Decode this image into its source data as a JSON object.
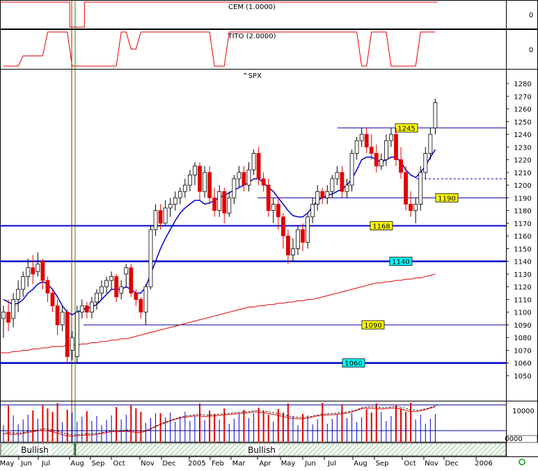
{
  "chart_data": {
    "type": "candlestick",
    "panels": {
      "cem": {
        "title": "CEM (1.0000)",
        "zero_label": "0"
      },
      "tito": {
        "title": "TITO (2.0000)",
        "zero_label": "0"
      },
      "price": {
        "title": "^SPX",
        "ylim": [
          1040,
          1285
        ],
        "y_ticks": [
          1050,
          1060,
          1070,
          1080,
          1090,
          1100,
          1110,
          1120,
          1130,
          1140,
          1150,
          1160,
          1170,
          1180,
          1190,
          1200,
          1210,
          1220,
          1230,
          1240,
          1250,
          1260,
          1270,
          1280
        ]
      },
      "volume": {
        "tick_label": "10000",
        "scale_box": "0000"
      }
    },
    "x_labels": [
      "May",
      "Jun",
      "Jul",
      "Aug",
      "Sep",
      "Oct",
      "Nov",
      "Dec",
      "2005",
      "Feb",
      "Mar",
      "Apr",
      "May",
      "Jun",
      "Jul",
      "Aug",
      "Sep",
      "Oct",
      "Nov",
      "Dec",
      "2006"
    ],
    "support_lines": [
      {
        "value": 1245,
        "label": "1245",
        "color": "#ffff00"
      },
      {
        "value": 1190,
        "label": "1190",
        "color": "#ffff00"
      },
      {
        "value": 1168,
        "label": "1168",
        "color": "#ffff00"
      },
      {
        "value": 1140,
        "label": "1140",
        "color": "#00ffff"
      },
      {
        "value": 1090,
        "label": "1090",
        "color": "#ffff00"
      },
      {
        "value": 1060,
        "label": "1060",
        "color": "#00ffff"
      }
    ],
    "candles": [
      [
        1095,
        1100,
        1080,
        1105,
        0
      ],
      [
        1100,
        1092,
        1085,
        1110,
        1
      ],
      [
        1095,
        1110,
        1088,
        1115,
        0
      ],
      [
        1110,
        1118,
        1100,
        1125,
        0
      ],
      [
        1118,
        1128,
        1112,
        1132,
        0
      ],
      [
        1128,
        1135,
        1120,
        1142,
        0
      ],
      [
        1135,
        1130,
        1122,
        1145,
        1
      ],
      [
        1132,
        1138,
        1128,
        1147,
        0
      ],
      [
        1140,
        1125,
        1118,
        1142,
        1
      ],
      [
        1125,
        1115,
        1108,
        1128,
        1
      ],
      [
        1115,
        1105,
        1100,
        1118,
        1
      ],
      [
        1105,
        1090,
        1082,
        1110,
        1
      ],
      [
        1090,
        1100,
        1085,
        1105,
        0
      ],
      [
        1100,
        1065,
        1060,
        1102,
        1
      ],
      [
        1070,
        1080,
        1062,
        1085,
        0
      ],
      [
        1065,
        1100,
        1060,
        1105,
        0
      ],
      [
        1100,
        1105,
        1095,
        1110,
        0
      ],
      [
        1105,
        1100,
        1095,
        1108,
        1
      ],
      [
        1100,
        1108,
        1095,
        1112,
        0
      ],
      [
        1108,
        1115,
        1102,
        1118,
        0
      ],
      [
        1115,
        1120,
        1110,
        1125,
        0
      ],
      [
        1120,
        1125,
        1115,
        1128,
        0
      ],
      [
        1125,
        1128,
        1118,
        1132,
        0
      ],
      [
        1128,
        1112,
        1108,
        1130,
        1
      ],
      [
        1115,
        1120,
        1110,
        1125,
        0
      ],
      [
        1130,
        1135,
        1120,
        1138,
        0
      ],
      [
        1135,
        1115,
        1112,
        1138,
        1
      ],
      [
        1115,
        1110,
        1105,
        1118,
        1
      ],
      [
        1110,
        1100,
        1095,
        1112,
        1
      ],
      [
        1100,
        1120,
        1090,
        1122,
        0
      ],
      [
        1120,
        1165,
        1118,
        1168,
        0
      ],
      [
        1165,
        1180,
        1160,
        1185,
        0
      ],
      [
        1180,
        1170,
        1165,
        1185,
        1
      ],
      [
        1170,
        1182,
        1168,
        1188,
        0
      ],
      [
        1182,
        1185,
        1175,
        1190,
        0
      ],
      [
        1185,
        1190,
        1180,
        1195,
        0
      ],
      [
        1190,
        1195,
        1185,
        1198,
        0
      ],
      [
        1195,
        1200,
        1190,
        1205,
        0
      ],
      [
        1200,
        1208,
        1195,
        1212,
        0
      ],
      [
        1208,
        1215,
        1200,
        1218,
        0
      ],
      [
        1215,
        1195,
        1188,
        1218,
        1
      ],
      [
        1195,
        1210,
        1190,
        1215,
        0
      ],
      [
        1210,
        1190,
        1185,
        1215,
        1
      ],
      [
        1190,
        1180,
        1175,
        1198,
        1
      ],
      [
        1180,
        1195,
        1175,
        1200,
        0
      ],
      [
        1195,
        1178,
        1170,
        1198,
        1
      ],
      [
        1178,
        1190,
        1175,
        1195,
        0
      ],
      [
        1190,
        1205,
        1185,
        1208,
        0
      ],
      [
        1205,
        1210,
        1198,
        1215,
        0
      ],
      [
        1210,
        1200,
        1195,
        1215,
        1
      ],
      [
        1200,
        1212,
        1195,
        1218,
        0
      ],
      [
        1212,
        1225,
        1208,
        1228,
        0
      ],
      [
        1225,
        1205,
        1200,
        1230,
        1
      ],
      [
        1205,
        1200,
        1195,
        1210,
        1
      ],
      [
        1200,
        1180,
        1175,
        1205,
        1
      ],
      [
        1180,
        1185,
        1170,
        1190,
        0
      ],
      [
        1185,
        1175,
        1165,
        1190,
        1
      ],
      [
        1175,
        1160,
        1150,
        1178,
        1
      ],
      [
        1160,
        1145,
        1138,
        1165,
        1
      ],
      [
        1145,
        1150,
        1140,
        1158,
        0
      ],
      [
        1150,
        1165,
        1145,
        1168,
        0
      ],
      [
        1165,
        1155,
        1148,
        1170,
        1
      ],
      [
        1155,
        1175,
        1150,
        1178,
        0
      ],
      [
        1175,
        1185,
        1170,
        1190,
        0
      ],
      [
        1185,
        1195,
        1180,
        1200,
        0
      ],
      [
        1195,
        1190,
        1185,
        1198,
        1
      ],
      [
        1190,
        1195,
        1185,
        1200,
        0
      ],
      [
        1195,
        1205,
        1190,
        1208,
        0
      ],
      [
        1205,
        1210,
        1200,
        1215,
        0
      ],
      [
        1210,
        1195,
        1190,
        1215,
        1
      ],
      [
        1195,
        1200,
        1190,
        1205,
        0
      ],
      [
        1200,
        1225,
        1195,
        1228,
        0
      ],
      [
        1225,
        1235,
        1220,
        1238,
        0
      ],
      [
        1235,
        1240,
        1230,
        1245,
        0
      ],
      [
        1240,
        1230,
        1225,
        1245,
        1
      ],
      [
        1230,
        1225,
        1220,
        1240,
        1
      ],
      [
        1225,
        1215,
        1210,
        1232,
        1
      ],
      [
        1215,
        1220,
        1212,
        1225,
        0
      ],
      [
        1220,
        1235,
        1215,
        1240,
        0
      ],
      [
        1235,
        1240,
        1230,
        1245,
        0
      ],
      [
        1240,
        1220,
        1215,
        1245,
        1
      ],
      [
        1220,
        1210,
        1205,
        1230,
        1
      ],
      [
        1210,
        1185,
        1180,
        1215,
        1
      ],
      [
        1185,
        1180,
        1175,
        1195,
        1
      ],
      [
        1180,
        1185,
        1170,
        1190,
        0
      ],
      [
        1185,
        1210,
        1180,
        1215,
        0
      ],
      [
        1210,
        1225,
        1205,
        1230,
        0
      ],
      [
        1225,
        1240,
        1220,
        1245,
        0
      ],
      [
        1245,
        1265,
        1240,
        1268,
        0
      ]
    ],
    "sma_short": [
      1110,
      1108,
      1106,
      1107,
      1110,
      1115,
      1118,
      1122,
      1124,
      1122,
      1118,
      1112,
      1105,
      1100,
      1098,
      1100,
      1102,
      1103,
      1104,
      1106,
      1110,
      1114,
      1118,
      1118,
      1118,
      1120,
      1118,
      1115,
      1115,
      1120,
      1130,
      1140,
      1150,
      1158,
      1165,
      1172,
      1178,
      1182,
      1185,
      1188,
      1188,
      1185,
      1186,
      1188,
      1190,
      1192,
      1194,
      1196,
      1198,
      1200,
      1202,
      1205,
      1205,
      1202,
      1198,
      1195,
      1190,
      1185,
      1180,
      1176,
      1175,
      1175,
      1178,
      1183,
      1188,
      1190,
      1192,
      1193,
      1195,
      1197,
      1200,
      1205,
      1212,
      1220,
      1222,
      1222,
      1220,
      1218,
      1220,
      1222,
      1222,
      1218,
      1212,
      1208,
      1206,
      1210,
      1215,
      1222,
      1228
    ],
    "sma_long": [
      1068,
      1068,
      1069,
      1069,
      1070,
      1070,
      1071,
      1071,
      1072,
      1072,
      1073,
      1073,
      1073,
      1074,
      1074,
      1074,
      1075,
      1075,
      1076,
      1076,
      1077,
      1077,
      1078,
      1078,
      1079,
      1079,
      1080,
      1081,
      1082,
      1083,
      1084,
      1085,
      1086,
      1087,
      1088,
      1089,
      1090,
      1091,
      1092,
      1093,
      1094,
      1095,
      1096,
      1097,
      1098,
      1099,
      1100,
      1101,
      1102,
      1103,
      1104,
      1104,
      1105,
      1105,
      1106,
      1106,
      1107,
      1107,
      1108,
      1108,
      1109,
      1109,
      1110,
      1110,
      1111,
      1112,
      1113,
      1114,
      1115,
      1116,
      1117,
      1118,
      1119,
      1120,
      1121,
      1122,
      1123,
      1123,
      1124,
      1124,
      1125,
      1125,
      1126,
      1126,
      1127,
      1127,
      1128,
      1129,
      1130
    ],
    "cem_signal": [
      1,
      1,
      1,
      1,
      1,
      1,
      1,
      1,
      1,
      1,
      1,
      1,
      1,
      1,
      0,
      0,
      0,
      1,
      1,
      1,
      1,
      1,
      1,
      1,
      1,
      1,
      1,
      1,
      1,
      1,
      1,
      1,
      1,
      1,
      1,
      1,
      1,
      1,
      1,
      1,
      1,
      1,
      1,
      1,
      1,
      1,
      1,
      1,
      1,
      1,
      1,
      1,
      1,
      1,
      1,
      1,
      1,
      1,
      1,
      1,
      1,
      1,
      1,
      1,
      1,
      1,
      1,
      1,
      1,
      1,
      1,
      1,
      1,
      1,
      1,
      1,
      1,
      1,
      1,
      1,
      1,
      1,
      1,
      1,
      1,
      1,
      1,
      1,
      1
    ],
    "tito_signal": [
      0,
      0,
      0,
      0,
      0.3,
      0.3,
      0.3,
      0.3,
      0.3,
      1,
      1,
      1,
      1,
      1,
      0,
      0,
      0,
      0,
      0,
      0,
      0,
      0,
      0,
      0,
      1,
      1,
      0.5,
      0.5,
      1,
      1,
      1,
      1,
      1,
      1,
      1,
      1,
      1,
      1,
      1,
      1,
      1,
      1,
      1,
      0,
      0,
      0,
      1,
      1,
      1,
      1,
      1,
      1,
      1,
      1,
      1,
      1,
      1,
      1,
      1,
      1,
      1,
      1,
      1,
      1,
      1,
      1,
      1,
      1,
      1,
      1,
      1,
      1,
      1,
      0,
      0,
      1,
      1,
      1,
      1,
      0,
      0,
      0,
      0,
      0,
      0,
      1,
      1,
      1,
      1
    ],
    "bands": [
      {
        "label": "Bullish",
        "start": 0,
        "end": 14
      },
      {
        "label": "Bullish",
        "start": 15,
        "end": 88
      }
    ]
  }
}
